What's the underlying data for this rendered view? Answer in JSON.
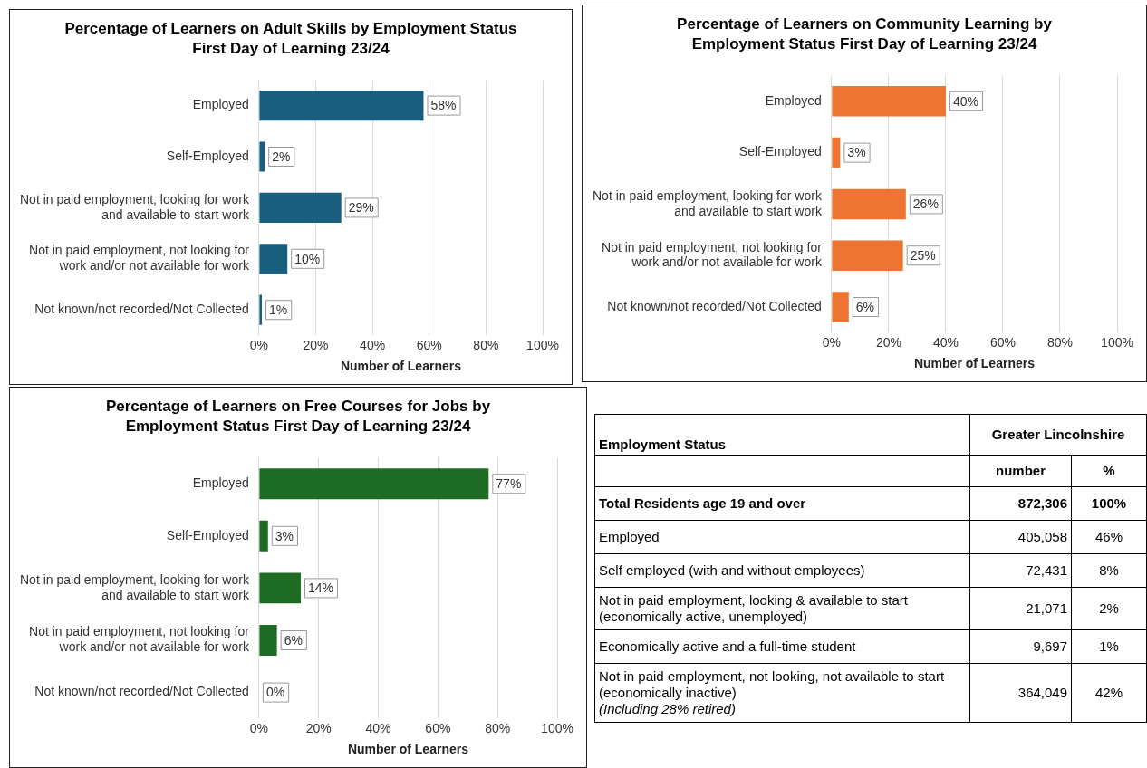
{
  "chart_data": [
    {
      "type": "bar",
      "orientation": "horizontal",
      "title": "Percentage of Learners on Adult Skills by Employment Status First Day of Learning 23/24",
      "xlabel": "Number of Learners",
      "categories": [
        "Employed",
        "Self-Employed",
        "Not in paid employment, looking for work and available to start work",
        "Not in paid employment, not looking for work and/or not available for work",
        "Not known/not recorded/Not Collected"
      ],
      "values": [
        58,
        2,
        29,
        10,
        1
      ],
      "value_labels": [
        "58%",
        "2%",
        "29%",
        "10%",
        "1%"
      ],
      "color": "#175e7f",
      "xlim": [
        0,
        100
      ],
      "xticks": [
        {
          "value": 0,
          "label": "0%"
        },
        {
          "value": 20,
          "label": "20%"
        },
        {
          "value": 40,
          "label": "40%"
        },
        {
          "value": 60,
          "label": "60%"
        },
        {
          "value": 80,
          "label": "80%"
        },
        {
          "value": 100,
          "label": "100%"
        }
      ],
      "grid": "x",
      "legend": false
    },
    {
      "type": "bar",
      "orientation": "horizontal",
      "title": "Percentage of Learners on Community Learning by Employment Status First Day of Learning 23/24",
      "xlabel": "Number of Learners",
      "categories": [
        "Employed",
        "Self-Employed",
        "Not in paid employment, looking for work and available to start work",
        "Not in paid employment, not looking for work and/or not available for work",
        "Not known/not recorded/Not Collected"
      ],
      "values": [
        40,
        3,
        26,
        25,
        6
      ],
      "value_labels": [
        "40%",
        "3%",
        "26%",
        "25%",
        "6%"
      ],
      "color": "#ed7431",
      "xlim": [
        0,
        100
      ],
      "xticks": [
        {
          "value": 0,
          "label": "0%"
        },
        {
          "value": 20,
          "label": "20%"
        },
        {
          "value": 40,
          "label": "40%"
        },
        {
          "value": 60,
          "label": "60%"
        },
        {
          "value": 80,
          "label": "80%"
        },
        {
          "value": 100,
          "label": "100%"
        }
      ],
      "grid": "x",
      "legend": false
    },
    {
      "type": "bar",
      "orientation": "horizontal",
      "title": "Percentage of Learners on Free Courses for Jobs by Employment Status First Day of Learning 23/24",
      "xlabel": "Number of Learners",
      "categories": [
        "Employed",
        "Self-Employed",
        "Not in paid employment, looking for work and available to start work",
        "Not in paid employment, not looking for work and/or not available for work",
        "Not known/not recorded/Not Collected"
      ],
      "values": [
        77,
        3,
        14,
        6,
        0
      ],
      "value_labels": [
        "77%",
        "3%",
        "14%",
        "6%",
        "0%"
      ],
      "color": "#1e6b23",
      "xlim": [
        0,
        100
      ],
      "xticks": [
        {
          "value": 0,
          "label": "0%"
        },
        {
          "value": 20,
          "label": "20%"
        },
        {
          "value": 40,
          "label": "40%"
        },
        {
          "value": 60,
          "label": "60%"
        },
        {
          "value": 80,
          "label": "80%"
        },
        {
          "value": 100,
          "label": "100%"
        }
      ],
      "grid": "x",
      "legend": false
    },
    {
      "type": "other",
      "title": "Employment Status",
      "legend_title": "Greater Lincolnshire",
      "categories": [
        "Total Residents age 19 and over",
        "Employed",
        "Self employed (with and without employees)",
        "Not in paid employment, looking & available to start (economically active, unemployed)",
        "Economically active and a full-time student",
        "Not in paid employment, not looking, not available to start (economically inactive)"
      ],
      "series": [
        {
          "name": "number",
          "values": [
            872306,
            405058,
            72431,
            21071,
            9697,
            364049
          ],
          "value_labels": [
            "872,306",
            "405,058",
            "72,431",
            "21,071",
            "9,697",
            "364,049"
          ]
        },
        {
          "name": "%",
          "values": [
            100,
            46,
            8,
            2,
            1,
            42
          ],
          "value_labels": [
            "100%",
            "46%",
            "8%",
            "2%",
            "1%",
            "42%"
          ]
        }
      ],
      "annotations": [
        "(Including 28% retired)"
      ]
    }
  ]
}
